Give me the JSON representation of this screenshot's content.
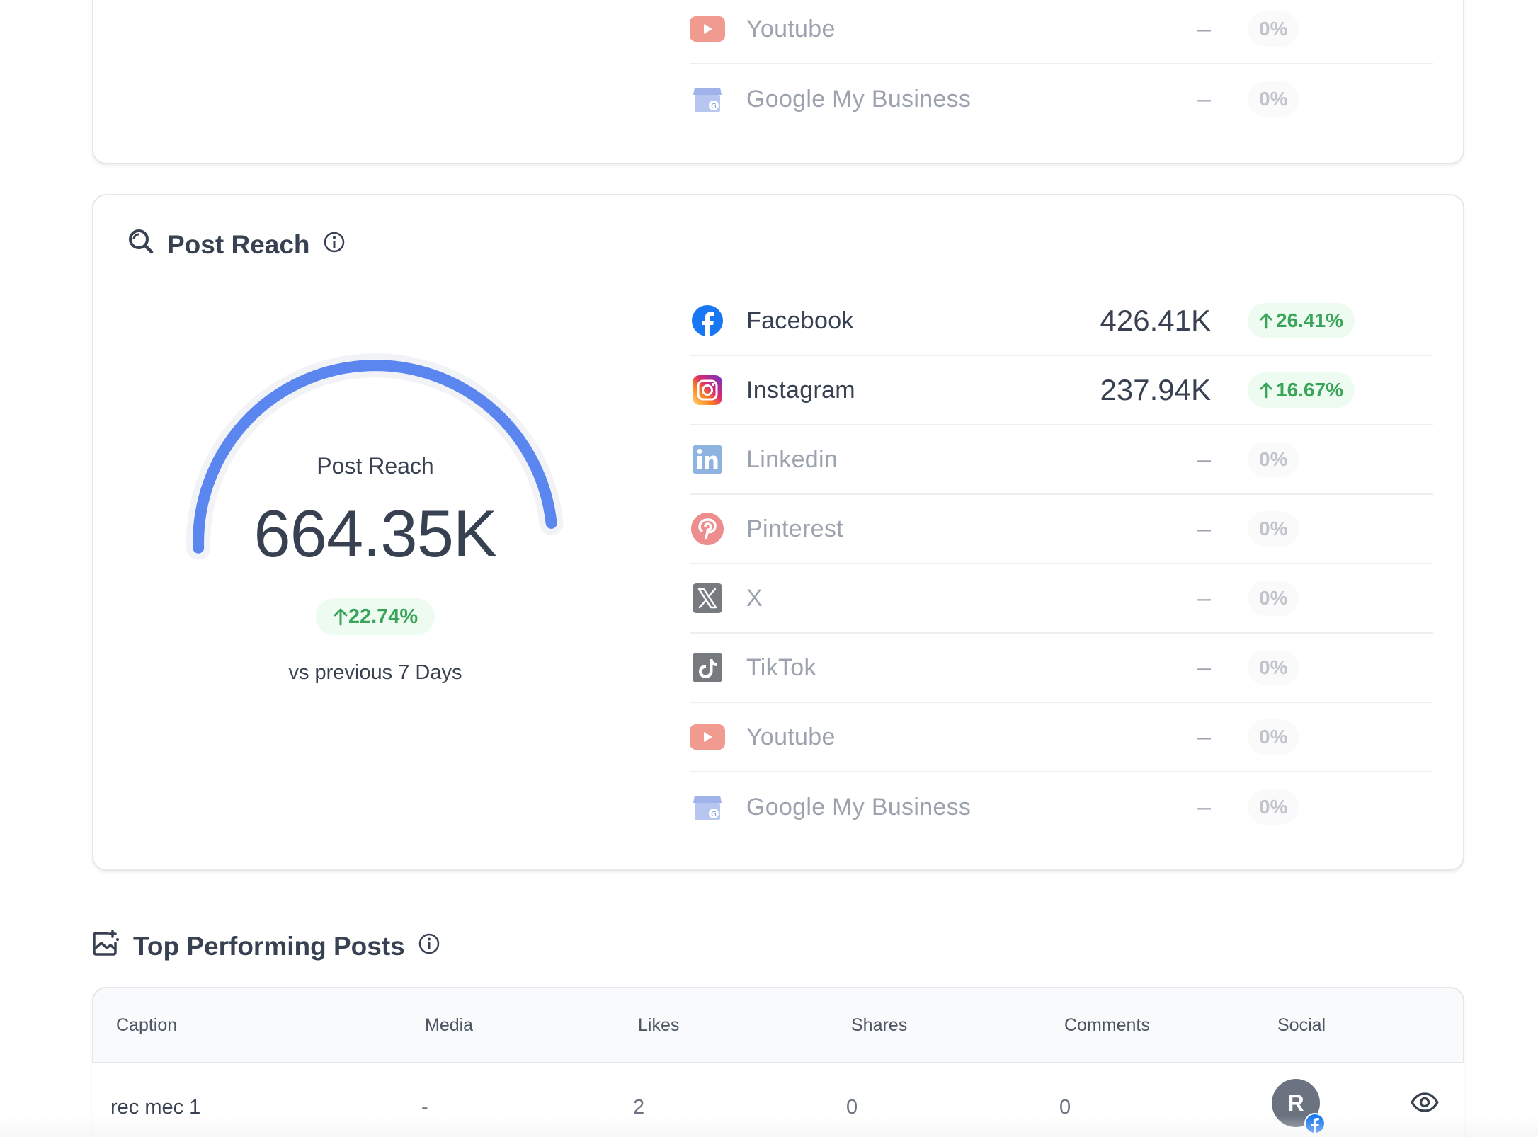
{
  "engagement_card": {
    "rows": [
      {
        "platform": "Youtube",
        "icon": "youtube-icon",
        "value": "–",
        "change": "0%"
      },
      {
        "platform": "Google My Business",
        "icon": "google-my-business-icon",
        "value": "–",
        "change": "0%"
      }
    ]
  },
  "post_reach": {
    "title": "Post Reach",
    "gauge": {
      "label": "Post Reach",
      "value": "664.35K",
      "change": "22.74%",
      "compare": "vs previous 7 Days",
      "fill_fraction": 1.0
    },
    "rows": [
      {
        "platform": "Facebook",
        "icon": "facebook-icon",
        "value": "426.41K",
        "change": "26.41%",
        "active": true
      },
      {
        "platform": "Instagram",
        "icon": "instagram-icon",
        "value": "237.94K",
        "change": "16.67%",
        "active": true
      },
      {
        "platform": "Linkedin",
        "icon": "linkedin-icon",
        "value": "–",
        "change": "0%",
        "active": false
      },
      {
        "platform": "Pinterest",
        "icon": "pinterest-icon",
        "value": "–",
        "change": "0%",
        "active": false
      },
      {
        "platform": "X",
        "icon": "x-icon",
        "value": "–",
        "change": "0%",
        "active": false
      },
      {
        "platform": "TikTok",
        "icon": "tiktok-icon",
        "value": "–",
        "change": "0%",
        "active": false
      },
      {
        "platform": "Youtube",
        "icon": "youtube-icon",
        "value": "–",
        "change": "0%",
        "active": false
      },
      {
        "platform": "Google My Business",
        "icon": "google-my-business-icon",
        "value": "–",
        "change": "0%",
        "active": false
      }
    ]
  },
  "top_posts": {
    "title": "Top Performing Posts",
    "columns": [
      "Caption",
      "Media",
      "Likes",
      "Shares",
      "Comments",
      "Social"
    ],
    "rows": [
      {
        "caption": "rec mec 1",
        "media": "-",
        "likes": "2",
        "shares": "0",
        "comments": "0",
        "avatar_initial": "R"
      }
    ]
  },
  "colors": {
    "gauge": "#5b86f0",
    "positive": "#3aa55a",
    "positive_bg": "#eefbf1",
    "facebook": "#1877f2"
  }
}
